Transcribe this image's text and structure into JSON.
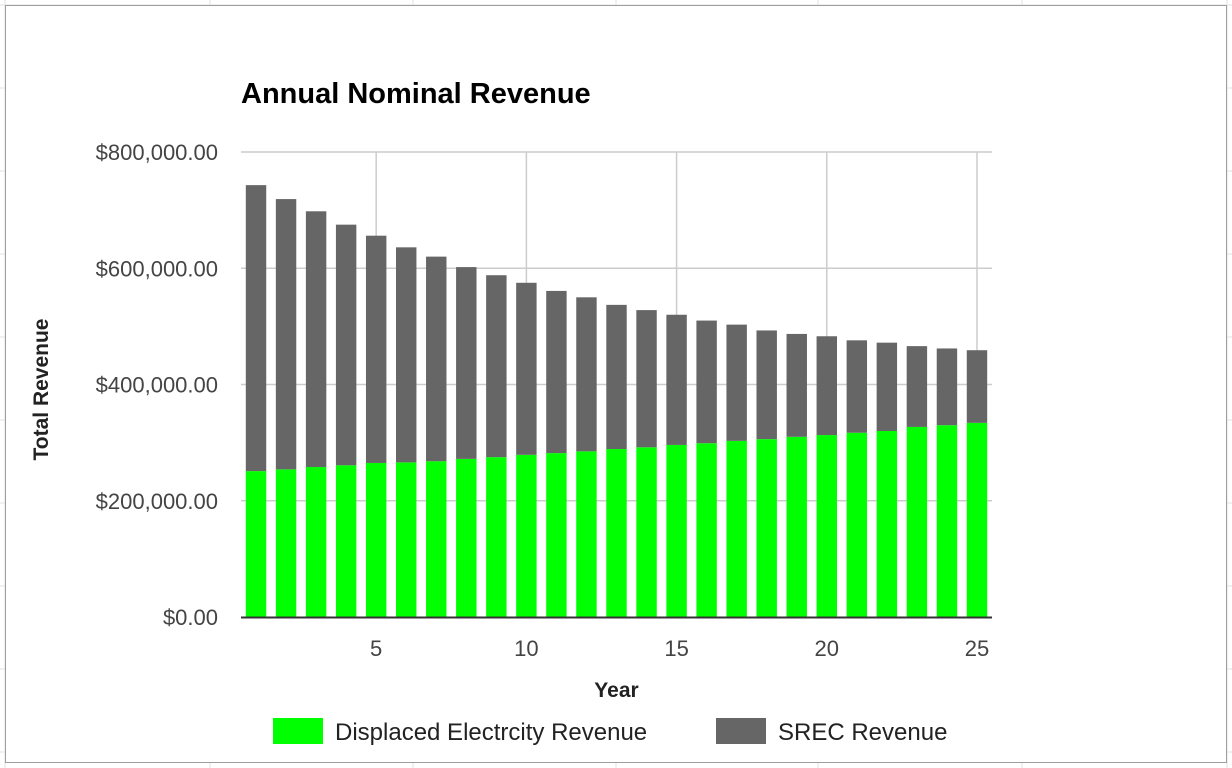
{
  "chart_data": {
    "type": "bar",
    "stacked": true,
    "title": "Annual Nominal Revenue",
    "xlabel": "Year",
    "ylabel": "Total Revenue",
    "x": [
      1,
      2,
      3,
      4,
      5,
      6,
      7,
      8,
      9,
      10,
      11,
      12,
      13,
      14,
      15,
      16,
      17,
      18,
      19,
      20,
      21,
      22,
      23,
      24,
      25
    ],
    "xticks": [
      5,
      10,
      15,
      20,
      25
    ],
    "xtick_labels": [
      "5",
      "10",
      "15",
      "20",
      "25"
    ],
    "xlim": [
      0.5,
      25.5
    ],
    "ylim": [
      0,
      800000
    ],
    "yticks": [
      0,
      200000,
      400000,
      600000,
      800000
    ],
    "ytick_labels": [
      "$0.00",
      "$200,000.00",
      "$400,000.00",
      "$600,000.00",
      "$800,000.00"
    ],
    "grid": true,
    "legend_position": "bottom",
    "series": [
      {
        "name": "Displaced Electrcity Revenue",
        "color": "#00ff00",
        "values": [
          251000,
          254000,
          258000,
          261000,
          265000,
          266000,
          268000,
          272000,
          275000,
          279000,
          282000,
          285000,
          289000,
          292000,
          296000,
          299000,
          303000,
          306000,
          310000,
          313000,
          317000,
          320000,
          327000,
          330000,
          334000
        ]
      },
      {
        "name": "SREC Revenue",
        "color": "#666666",
        "values": [
          492000,
          465000,
          440000,
          414000,
          391000,
          370000,
          352000,
          330000,
          313000,
          296000,
          279000,
          265000,
          248000,
          236000,
          224000,
          211000,
          200000,
          187000,
          177000,
          170000,
          159000,
          152000,
          139000,
          132000,
          125000
        ]
      }
    ]
  }
}
